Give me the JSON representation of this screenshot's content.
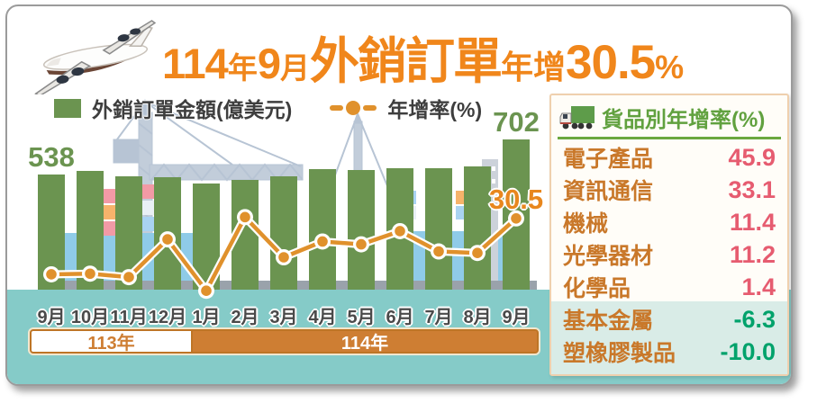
{
  "title": {
    "full": "114年9月外銷訂單年增30.5%",
    "num1": "114",
    "unit1": "年",
    "num2": "9",
    "unit2": "月",
    "main": "外銷訂單",
    "growth": "年增",
    "value": "30.5",
    "pct": "%"
  },
  "legend": {
    "bar_label": "外銷訂單金額(億美元)",
    "line_label": "年增率(%)"
  },
  "chart_data": {
    "type": "bar",
    "title": "114年9月外銷訂單年增30.5%",
    "categories": [
      "9月",
      "10月",
      "11月",
      "12月",
      "1月",
      "2月",
      "3月",
      "4月",
      "5月",
      "6月",
      "7月",
      "8月",
      "9月"
    ],
    "series": [
      {
        "name": "外銷訂單金額(億美元)",
        "kind": "bar",
        "color": "#6B9450",
        "values": [
          538,
          554,
          528,
          526,
          494,
          511,
          530,
          564,
          557,
          569,
          567,
          576,
          702
        ]
      },
      {
        "name": "年增率(%)",
        "kind": "line",
        "color": "#E0912C",
        "values": [
          4.6,
          4.9,
          3.3,
          20.8,
          -3.0,
          31.1,
          12.5,
          19.8,
          18.5,
          24.6,
          15.2,
          14.5,
          30.5
        ]
      }
    ],
    "data_labels": [
      {
        "series": 0,
        "index": 0,
        "text": "538"
      },
      {
        "series": 0,
        "index": 12,
        "text": "702"
      },
      {
        "series": 1,
        "index": 12,
        "text": "30.5"
      }
    ],
    "x_groups": [
      {
        "label": "113年",
        "from": 0,
        "to": 3
      },
      {
        "label": "114年",
        "from": 4,
        "to": 12
      }
    ],
    "axes": {
      "y_axis_visible": false,
      "gridlines": false
    },
    "note": "bar values other than 538 and 702, and line values other than 30.5, are estimated from pixel heights"
  },
  "side_panel": {
    "title": "貨品別年增率(%)",
    "icon": "truck-icon",
    "rows": [
      {
        "label": "電子產品",
        "value": "45.9"
      },
      {
        "label": "資訊通信",
        "value": "33.1"
      },
      {
        "label": "機械",
        "value": "11.4"
      },
      {
        "label": "光學器材",
        "value": "11.2"
      },
      {
        "label": "化學品",
        "value": "1.4"
      },
      {
        "label": "基本金屬",
        "value": "-6.3"
      },
      {
        "label": "塑橡膠製品",
        "value": "-10.0"
      }
    ]
  },
  "colors": {
    "title_orange": "#F0861B",
    "bar_green": "#6B9450",
    "line_orange": "#E0912C",
    "teal_band": "#85CBC8",
    "year_band_orange": "#CE7E33",
    "panel_label_orange": "#C9782A",
    "panel_positive_red": "#E65C70",
    "panel_negative_green": "#00A26B",
    "panel_title_green": "#61A13F"
  }
}
